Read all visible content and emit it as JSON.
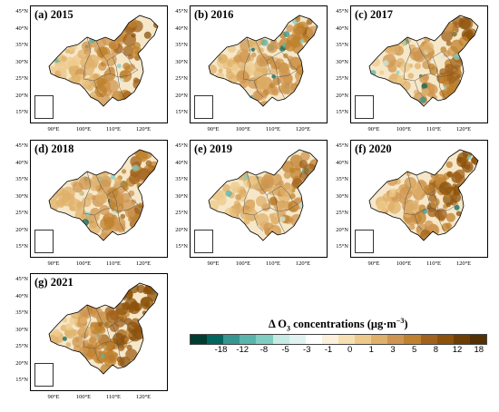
{
  "panels": [
    {
      "title": "(a) 2015",
      "intensity": 0.62,
      "blue": 0.35
    },
    {
      "title": "(b) 2016",
      "intensity": 0.45,
      "blue": 0.8
    },
    {
      "title": "(c) 2017",
      "intensity": 0.58,
      "blue": 0.55
    },
    {
      "title": "(d) 2018",
      "intensity": 0.5,
      "blue": 0.5
    },
    {
      "title": "(e) 2019",
      "intensity": 0.42,
      "blue": 0.6
    },
    {
      "title": "(f) 2020",
      "intensity": 0.78,
      "blue": 0.2
    },
    {
      "title": "(g) 2021",
      "intensity": 0.85,
      "blue": 0.15
    }
  ],
  "lat_labels": [
    "45°N",
    "40°N",
    "35°N",
    "30°N",
    "25°N",
    "20°N",
    "15°N"
  ],
  "lon_labels": [
    "90°E",
    "100°E",
    "110°E",
    "120°E"
  ],
  "colorbar": {
    "title_prefix": "Δ O",
    "title_sub": "3",
    "title_suffix": " concentrations (μg·m",
    "title_sup": "−3",
    "title_end": ")",
    "tick_labels": [
      "-18",
      "-12",
      "-8",
      "-5",
      "-3",
      "-1",
      "0",
      "1",
      "3",
      "5",
      "8",
      "12",
      "18"
    ],
    "colors": [
      "#003c30",
      "#01665e",
      "#35978f",
      "#5ab4ac",
      "#80cdc1",
      "#c7eae5",
      "#e0f3f1",
      "#ffffff",
      "#fbf0dc",
      "#f6e0b2",
      "#edca8b",
      "#dfb06a",
      "#cf9550",
      "#bf812d",
      "#a0621c",
      "#8c510a",
      "#6d3d06",
      "#543005"
    ]
  }
}
